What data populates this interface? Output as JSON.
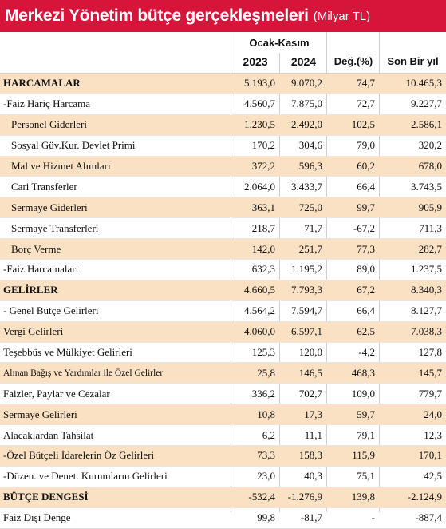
{
  "title": "Merkezi Yönetim bütçe gerçekleşmeleri",
  "unit": "(Milyar TL)",
  "header": {
    "period": "Ocak-Kasım",
    "col_2023": "2023",
    "col_2024": "2024",
    "col_change": "Değ.(%)",
    "col_last_year": "Son Bir yıl"
  },
  "rows": [
    {
      "label": "HARCAMALAR",
      "v2023": "5.193,0",
      "v2024": "9.070,2",
      "change": "74,7",
      "last": "10.465,3"
    },
    {
      "label": "-Faiz Hariç Harcama",
      "v2023": "4.560,7",
      "v2024": "7.875,0",
      "change": "72,7",
      "last": "9.227,7"
    },
    {
      "label": "Personel Giderleri",
      "v2023": "1.230,5",
      "v2024": "2.492,0",
      "change": "102,5",
      "last": "2.586,1"
    },
    {
      "label": "Sosyal Güv.Kur. Devlet Primi",
      "v2023": "170,2",
      "v2024": "304,6",
      "change": "79,0",
      "last": "320,2"
    },
    {
      "label": "Mal ve Hizmet Alımları",
      "v2023": "372,2",
      "v2024": "596,3",
      "change": "60,2",
      "last": "678,0"
    },
    {
      "label": "Cari Transferler",
      "v2023": "2.064,0",
      "v2024": "3.433,7",
      "change": "66,4",
      "last": "3.743,5"
    },
    {
      "label": "Sermaye Giderleri",
      "v2023": "363,1",
      "v2024": "725,0",
      "change": "99,7",
      "last": "905,9"
    },
    {
      "label": "Sermaye Transferleri",
      "v2023": "218,7",
      "v2024": "71,7",
      "change": "-67,2",
      "last": "711,3"
    },
    {
      "label": "Borç Verme",
      "v2023": "142,0",
      "v2024": "251,7",
      "change": "77,3",
      "last": "282,7"
    },
    {
      "label": "-Faiz Harcamaları",
      "v2023": "632,3",
      "v2024": "1.195,2",
      "change": "89,0",
      "last": "1.237,5"
    },
    {
      "label": "GELİRLER",
      "v2023": "4.660,5",
      "v2024": "7.793,3",
      "change": "67,2",
      "last": "8.340,3"
    },
    {
      "label": "- Genel Bütçe Gelirleri",
      "v2023": "4.564,2",
      "v2024": "7.594,7",
      "change": "66,4",
      "last": "8.127,7"
    },
    {
      "label": "Vergi Gelirleri",
      "v2023": "4.060,0",
      "v2024": "6.597,1",
      "change": "62,5",
      "last": "7.038,3"
    },
    {
      "label": "Teşebbüs ve Mülkiyet Gelirleri",
      "v2023": "125,3",
      "v2024": "120,0",
      "change": "-4,2",
      "last": "127,8"
    },
    {
      "label": "Alınan Bağış ve Yardımlar ile Özel Gelirler",
      "v2023": "25,8",
      "v2024": "146,5",
      "change": "468,3",
      "last": "145,7"
    },
    {
      "label": "Faizler, Paylar ve Cezalar",
      "v2023": "336,2",
      "v2024": "702,7",
      "change": "109,0",
      "last": "779,7"
    },
    {
      "label": "Sermaye Gelirleri",
      "v2023": "10,8",
      "v2024": "17,3",
      "change": "59,7",
      "last": "24,0"
    },
    {
      "label": "Alacaklardan Tahsilat",
      "v2023": "6,2",
      "v2024": "11,1",
      "change": "79,1",
      "last": "12,3"
    },
    {
      "label": "-Özel Bütçeli İdarelerin Öz Gelirleri",
      "v2023": "73,3",
      "v2024": "158,3",
      "change": "115,9",
      "last": "170,1"
    },
    {
      "label": "-Düzen. ve Denet. Kurumların Gelirleri",
      "v2023": "23,0",
      "v2024": "40,3",
      "change": "75,1",
      "last": "42,5"
    },
    {
      "label": "BÜTÇE DENGESİ",
      "v2023": "-532,4",
      "v2024": "-1.276,9",
      "change": "139,8",
      "last": "-2.124,9"
    },
    {
      "label": "Faiz Dışı Denge",
      "v2023": "99,8",
      "v2024": "-81,7",
      "change": "-",
      "last": "-887,4"
    }
  ]
}
